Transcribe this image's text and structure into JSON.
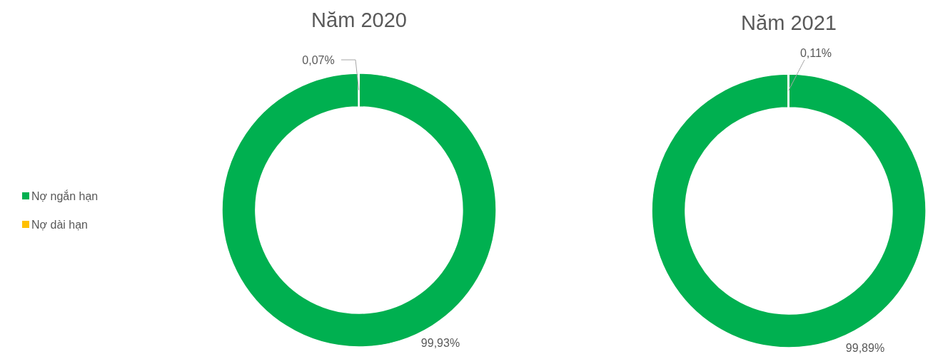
{
  "chart_data": [
    {
      "type": "donut",
      "title": "Năm 2020",
      "categories": [
        "Nợ ngắn hạn",
        "Nợ dài hạn"
      ],
      "values": [
        99.93,
        0.07
      ],
      "colors": [
        "#00b050",
        "#ffc000"
      ],
      "value_labels": [
        "99,93%",
        "0,07%"
      ],
      "legend": "left"
    },
    {
      "type": "donut",
      "title": "Năm 2021",
      "categories": [
        null,
        null
      ],
      "values": [
        99.89,
        0.11
      ],
      "colors": [
        "#00b050",
        "#ffc000"
      ],
      "value_labels": [
        "99,89%",
        "0,11%"
      ]
    }
  ]
}
